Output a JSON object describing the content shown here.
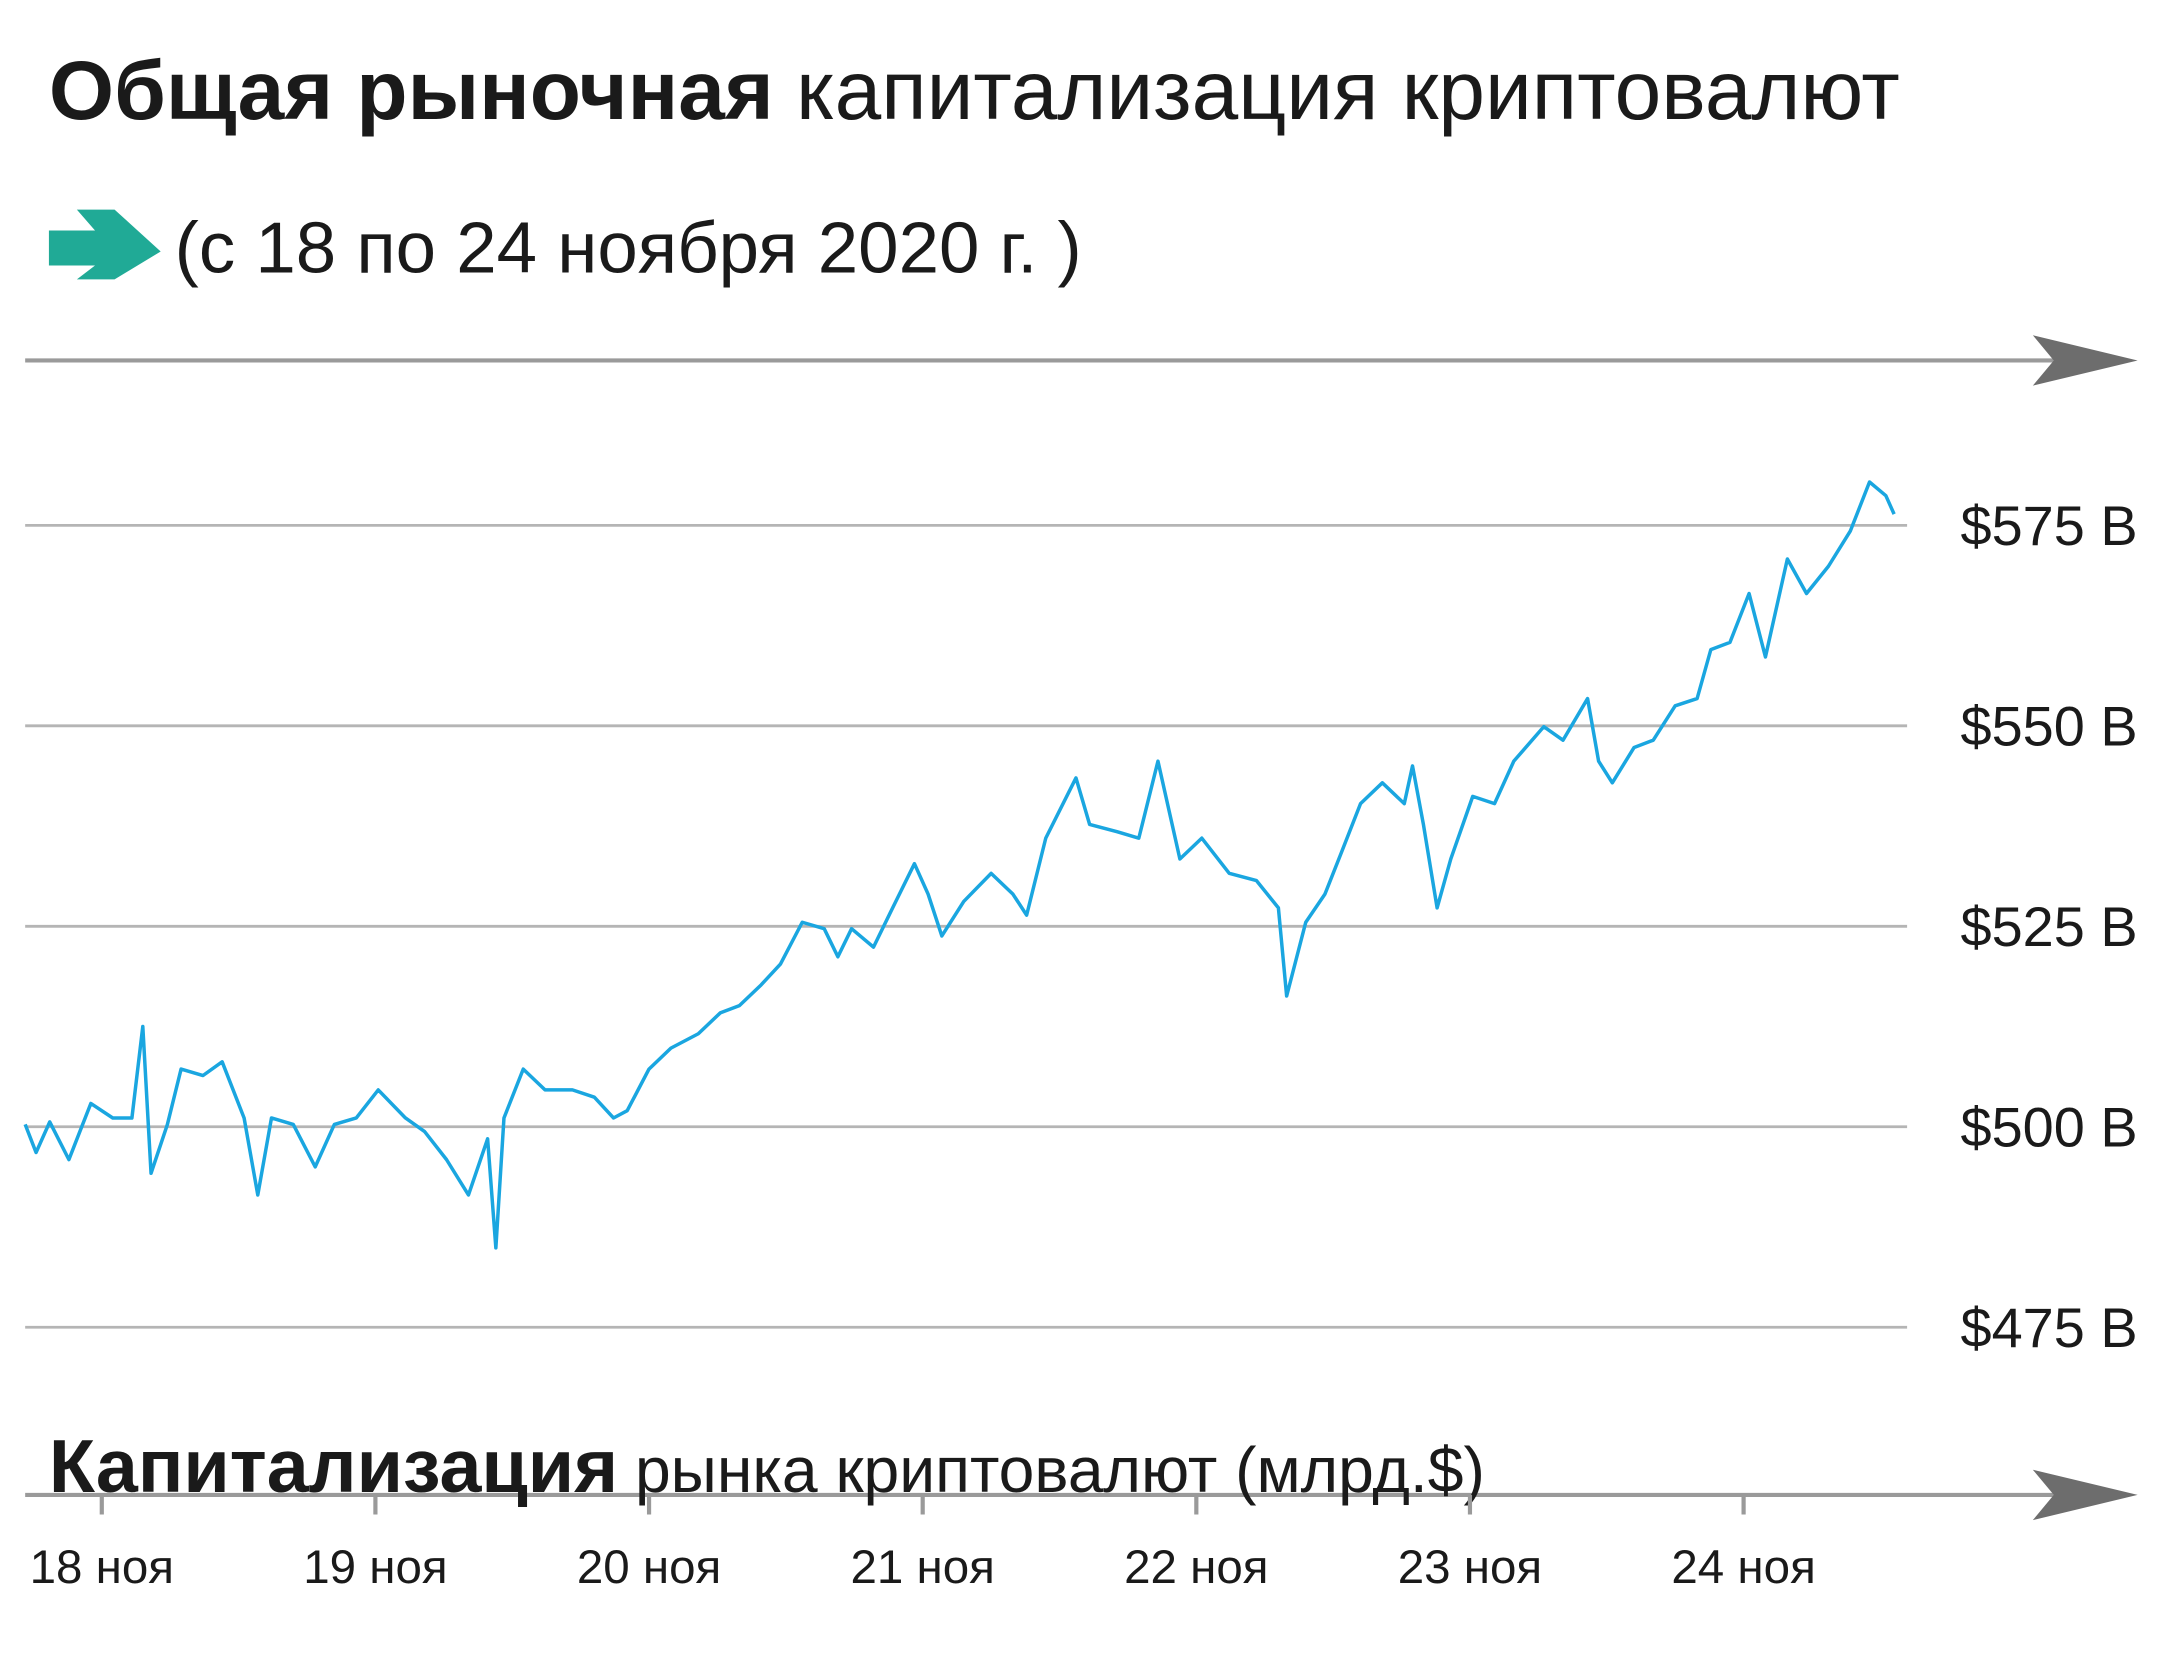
{
  "chart_data": {
    "type": "line",
    "title": {
      "bold": "Общая рыночная",
      "regular": "капитализация криптовалют"
    },
    "subtitle": "(с 18 по 24 ноября 2020 г. )",
    "x_label": {
      "bold": "Капитализация",
      "regular": "рынка криптовалют (млрд.$)"
    },
    "color": "#1aa6e0",
    "x": [
      17.72,
      17.76,
      17.81,
      17.88,
      17.96,
      18.04,
      18.11,
      18.15,
      18.18,
      18.24,
      18.29,
      18.37,
      18.44,
      18.52,
      18.57,
      18.62,
      18.7,
      18.78,
      18.85,
      18.93,
      19.01,
      19.11,
      19.18,
      19.26,
      19.34,
      19.41,
      19.44,
      19.47,
      19.54,
      19.62,
      19.72,
      19.8,
      19.87,
      19.92,
      20.0,
      20.08,
      20.18,
      20.26,
      20.33,
      20.41,
      20.48,
      20.56,
      20.64,
      20.69,
      20.74,
      20.82,
      20.89,
      20.97,
      21.02,
      21.07,
      21.15,
      21.25,
      21.33,
      21.38,
      21.45,
      21.56,
      21.61,
      21.71,
      21.79,
      21.86,
      21.94,
      22.02,
      22.12,
      22.22,
      22.3,
      22.33,
      22.4,
      22.47,
      22.53,
      22.6,
      22.68,
      22.76,
      22.79,
      22.83,
      22.88,
      22.93,
      23.01,
      23.09,
      23.16,
      23.27,
      23.34,
      23.43,
      23.47,
      23.52,
      23.6,
      23.67,
      23.75,
      23.83,
      23.88,
      23.95,
      24.02,
      24.08,
      24.16,
      24.23,
      24.31,
      24.39,
      24.46,
      24.52,
      24.55
    ],
    "values": [
      500.3,
      496.8,
      500.6,
      495.9,
      502.9,
      501.1,
      501.1,
      512.5,
      494.2,
      500.3,
      507.2,
      506.4,
      508.1,
      501.1,
      491.5,
      501.1,
      500.3,
      495.0,
      500.3,
      501.1,
      504.6,
      501.1,
      499.4,
      495.9,
      491.5,
      498.5,
      484.9,
      501.1,
      507.2,
      504.6,
      504.6,
      503.7,
      501.1,
      502.0,
      507.2,
      509.8,
      511.6,
      514.2,
      515.1,
      517.7,
      520.3,
      525.5,
      524.7,
      521.2,
      524.7,
      522.4,
      527.3,
      532.8,
      529.0,
      523.8,
      528.1,
      531.6,
      529.0,
      526.4,
      536.0,
      543.5,
      537.7,
      536.8,
      536.0,
      545.6,
      533.4,
      536.0,
      531.6,
      530.7,
      527.3,
      516.3,
      525.5,
      529.0,
      534.2,
      540.3,
      542.9,
      540.3,
      545.0,
      537.7,
      527.3,
      533.4,
      541.2,
      540.3,
      545.6,
      549.9,
      548.2,
      553.4,
      545.6,
      542.9,
      547.3,
      548.2,
      552.5,
      553.4,
      559.5,
      560.4,
      566.5,
      558.6,
      570.8,
      566.5,
      569.9,
      574.3,
      580.4,
      578.7,
      576.4
    ],
    "xlim": [
      17.72,
      25.44
    ],
    "xticks": [
      {
        "value": 18,
        "label": "18 ноя"
      },
      {
        "value": 19,
        "label": "19 ноя"
      },
      {
        "value": 20,
        "label": "20 ноя"
      },
      {
        "value": 21,
        "label": "21 ноя"
      },
      {
        "value": 22,
        "label": "22 ноя"
      },
      {
        "value": 23,
        "label": "23 ноя"
      },
      {
        "value": 24,
        "label": "24 ноя"
      }
    ],
    "ylim": [
      454,
      596
    ],
    "yticks": [
      {
        "value": 475,
        "label": "$475 B"
      },
      {
        "value": 500,
        "label": "$500 B"
      },
      {
        "value": 525,
        "label": "$525 B"
      },
      {
        "value": 550,
        "label": "$550 B"
      },
      {
        "value": 575,
        "label": "$575 B"
      }
    ],
    "grid": true
  }
}
